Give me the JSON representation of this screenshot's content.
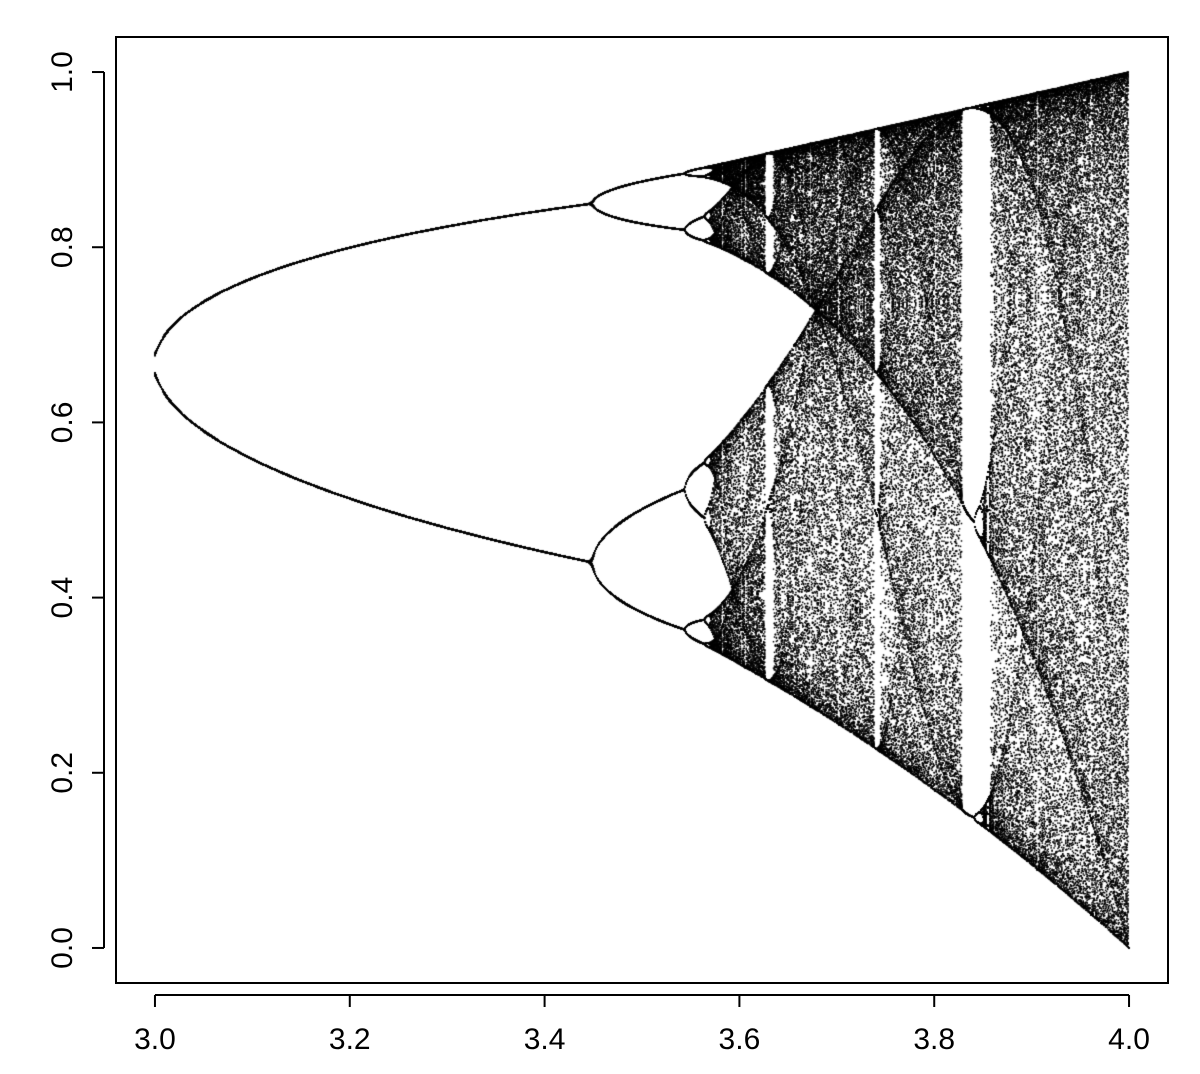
{
  "chart_data": {
    "type": "scatter",
    "title": "",
    "xlabel": "",
    "ylabel": "",
    "xlim": [
      2.96,
      4.04
    ],
    "ylim": [
      -0.04,
      1.04
    ],
    "x_ticks": [
      3.0,
      3.2,
      3.4,
      3.6,
      3.8,
      4.0
    ],
    "x_tick_labels": [
      "3.0",
      "3.2",
      "3.4",
      "3.6",
      "3.8",
      "4.0"
    ],
    "y_ticks": [
      0.0,
      0.2,
      0.4,
      0.6,
      0.8,
      1.0
    ],
    "y_tick_labels": [
      "0.0",
      "0.2",
      "0.4",
      "0.6",
      "0.8",
      "1.0"
    ],
    "grid": false,
    "legend": "none",
    "point_color": "#000000",
    "series": [
      {
        "map": "logistic x -> r*x*(1-x)",
        "r_range": [
          3.0,
          4.0
        ],
        "x0": 0.5,
        "transient_iterations": 300,
        "plotted_iterations": 250,
        "r_samples": 1000
      }
    ]
  }
}
